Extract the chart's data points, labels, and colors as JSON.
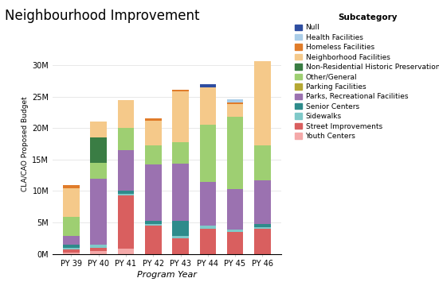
{
  "title": "Neighbourhood Improvement",
  "xlabel": "Program Year",
  "ylabel": "CLA/CAO Proposed Budget",
  "categories": [
    "PY 39",
    "PY 40",
    "PY 41",
    "PY 42",
    "PY 43",
    "PY 44",
    "PY 45",
    "PY 46"
  ],
  "subcategories_bottom_to_top": [
    "Youth Centers",
    "Street Improvements",
    "Sidewalks",
    "Senior Centers",
    "Parks, Recreational Facilities",
    "Parking Facilities",
    "Other/General",
    "Non-Residential Historic Preservation",
    "Neighborhood Facilities",
    "Homeless Facilities",
    "Health Facilities",
    "Null"
  ],
  "subcategories_legend": [
    "Null",
    "Health Facilities",
    "Homeless Facilities",
    "Neighborhood Facilities",
    "Non-Residential Historic Preservation",
    "Other/General",
    "Parking Facilities",
    "Parks, Recreational Facilities",
    "Senior Centers",
    "Sidewalks",
    "Street Improvements",
    "Youth Centers"
  ],
  "colors": {
    "Null": "#2e4da0",
    "Health Facilities": "#aacde8",
    "Homeless Facilities": "#e07c2a",
    "Neighborhood Facilities": "#f5c98a",
    "Non-Residential Historic Preservation": "#3a7d44",
    "Other/General": "#9ecf72",
    "Parking Facilities": "#b5a833",
    "Parks, Recreational Facilities": "#9b72b0",
    "Senior Centers": "#2e8b8b",
    "Sidewalks": "#7fc9c9",
    "Street Improvements": "#d95f5f",
    "Youth Centers": "#f4a9a9"
  },
  "data": {
    "Youth Centers": [
      0.2,
      0.5,
      0.8,
      0.0,
      0.0,
      0.0,
      0.0,
      0.0
    ],
    "Street Improvements": [
      0.5,
      0.5,
      8.5,
      4.5,
      2.5,
      4.0,
      3.5,
      4.0
    ],
    "Sidewalks": [
      0.2,
      0.5,
      0.2,
      0.2,
      0.3,
      0.5,
      0.3,
      0.2
    ],
    "Senior Centers": [
      0.5,
      0.0,
      0.5,
      0.5,
      2.5,
      0.0,
      0.0,
      0.5
    ],
    "Parks, Recreational Facilities": [
      1.5,
      10.5,
      6.5,
      9.0,
      9.0,
      7.0,
      6.5,
      7.0
    ],
    "Parking Facilities": [
      0.0,
      0.0,
      0.0,
      0.0,
      0.0,
      0.0,
      0.0,
      0.0
    ],
    "Other/General": [
      3.0,
      2.5,
      3.5,
      3.0,
      3.5,
      9.0,
      11.5,
      5.5
    ],
    "Non-Residential Historic Preservation": [
      0.0,
      4.0,
      0.0,
      0.0,
      0.0,
      0.0,
      0.0,
      0.0
    ],
    "Neighborhood Facilities": [
      4.5,
      2.5,
      4.5,
      4.0,
      8.0,
      6.0,
      2.0,
      13.5
    ],
    "Homeless Facilities": [
      0.5,
      0.0,
      0.0,
      0.3,
      0.3,
      0.0,
      0.3,
      0.0
    ],
    "Health Facilities": [
      0.0,
      0.0,
      0.0,
      0.0,
      0.0,
      0.0,
      0.5,
      0.0
    ],
    "Null": [
      0.0,
      0.0,
      0.0,
      0.0,
      0.0,
      0.5,
      0.0,
      0.0
    ]
  },
  "ylim": [
    0,
    35000000
  ],
  "yticks": [
    0,
    5000000,
    10000000,
    15000000,
    20000000,
    25000000,
    30000000
  ],
  "ytick_labels": [
    "0M",
    "5M",
    "10M",
    "15M",
    "20M",
    "25M",
    "30M"
  ],
  "background_color": "#ffffff",
  "grid_color": "#e8e8e8"
}
